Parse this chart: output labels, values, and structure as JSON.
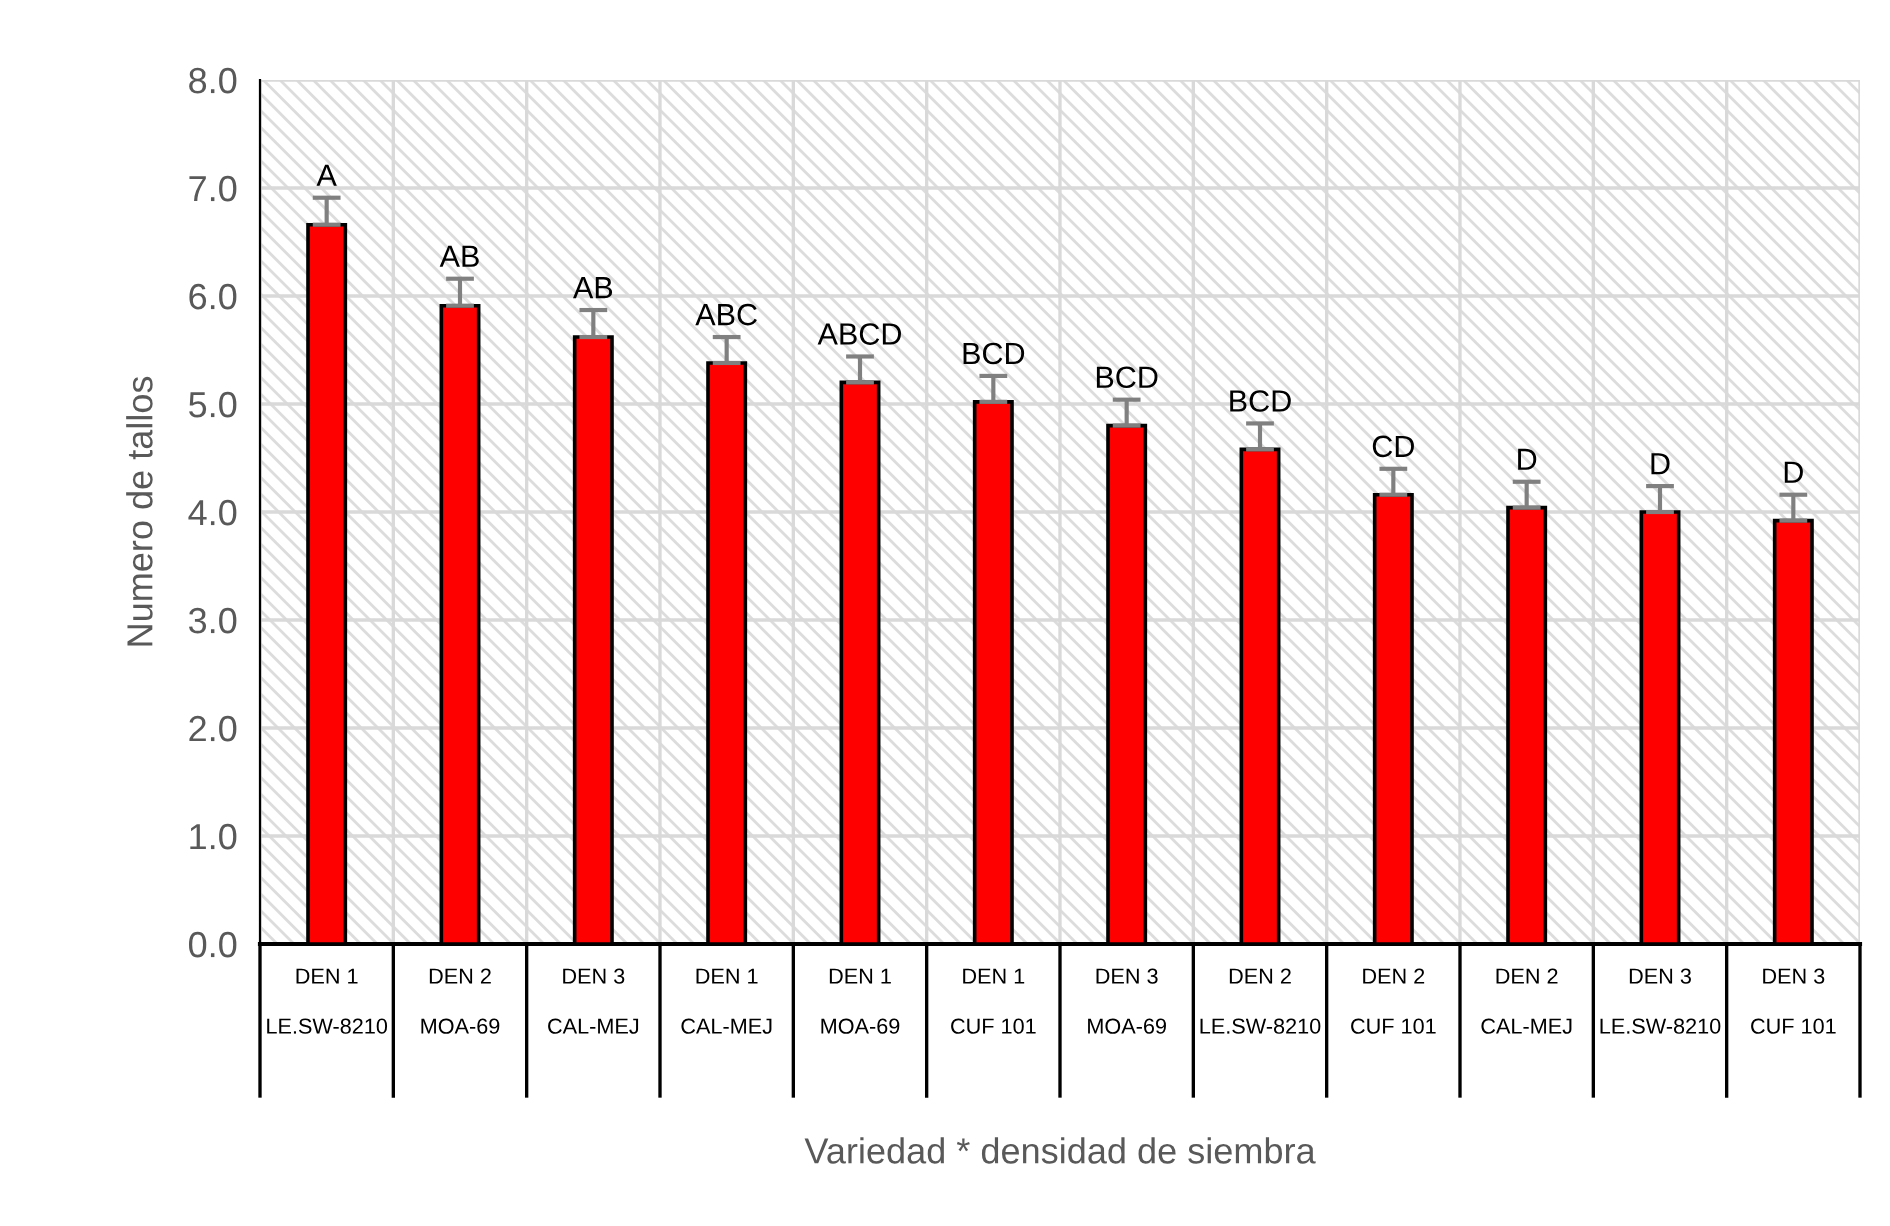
{
  "chart_data": {
    "type": "bar",
    "xlabel": "Variedad * densidad de siembra",
    "ylabel": "Numero de tallos",
    "categories": [
      "DEN 1\nLE.SW-8210",
      "DEN 2\nMOA-69",
      "DEN 3\nCAL-MEJ",
      "DEN 1\nCAL-MEJ",
      "DEN 1\nMOA-69",
      "DEN 1\nCUF 101",
      "DEN 3\nMOA-69",
      "DEN 2\nLE.SW-8210",
      "DEN 2\nCUF 101",
      "DEN 2\nCAL-MEJ",
      "DEN 3\nLE.SW-8210",
      "DEN 3\nCUF 101"
    ],
    "values": [
      6.66,
      5.91,
      5.62,
      5.38,
      5.2,
      5.02,
      4.8,
      4.58,
      4.16,
      4.04,
      4.0,
      3.92
    ],
    "errors": [
      [
        6.66,
        6.91
      ],
      [
        5.91,
        6.16
      ],
      [
        5.62,
        5.87
      ],
      [
        5.38,
        5.62
      ],
      [
        5.2,
        5.44
      ],
      [
        5.02,
        5.26
      ],
      [
        4.8,
        5.04
      ],
      [
        4.58,
        4.82
      ],
      [
        4.16,
        4.4
      ],
      [
        4.04,
        4.28
      ],
      [
        4.0,
        4.24
      ],
      [
        3.92,
        4.16
      ]
    ],
    "color": "#ff0000",
    "ylim": [
      0,
      8
    ],
    "yticks": [
      {
        "value": 0,
        "label": "0.0"
      },
      {
        "value": 1,
        "label": "1.0"
      },
      {
        "value": 2,
        "label": "2.0"
      },
      {
        "value": 3,
        "label": "3.0"
      },
      {
        "value": 4,
        "label": "4.0"
      },
      {
        "value": 5,
        "label": "5.0"
      },
      {
        "value": 6,
        "label": "6.0"
      },
      {
        "value": 7,
        "label": "7.0"
      },
      {
        "value": 8,
        "label": "8.0"
      }
    ],
    "grid": true,
    "annotations": [
      "A",
      "AB",
      "AB",
      "ABC",
      "ABCD",
      "BCD",
      "BCD",
      "BCD",
      "CD",
      "D",
      "D",
      "D"
    ]
  }
}
